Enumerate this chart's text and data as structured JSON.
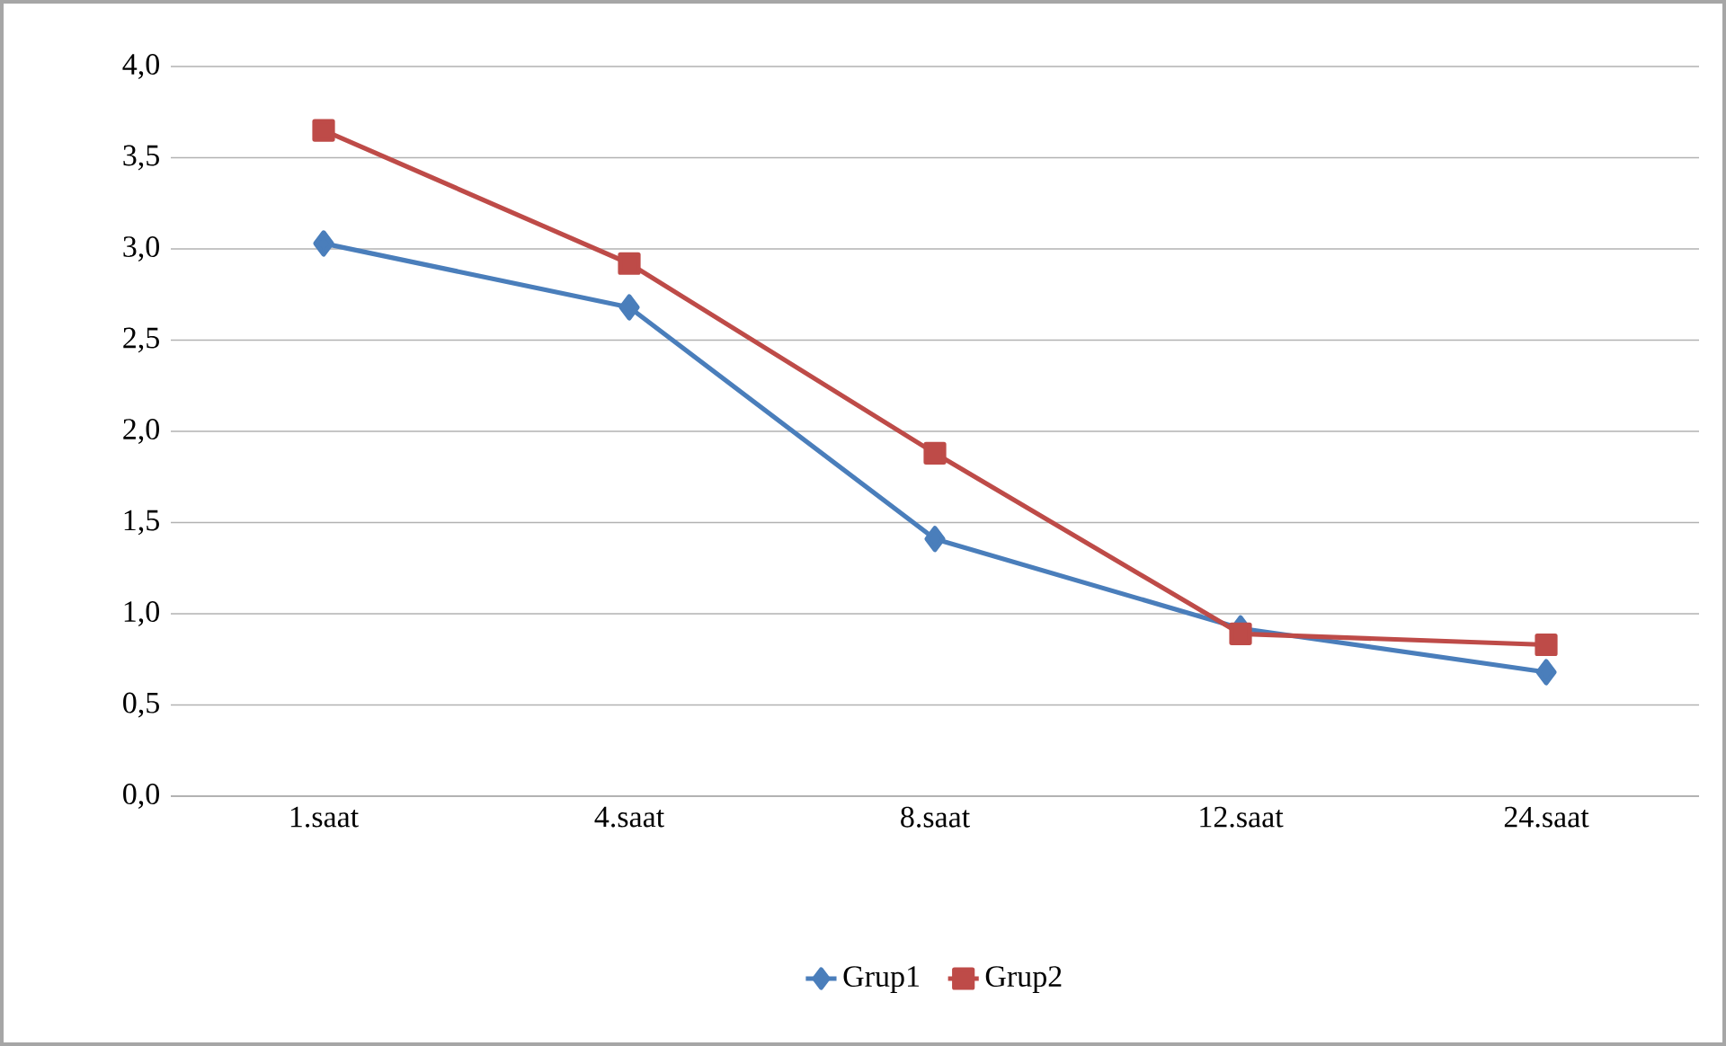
{
  "chart_data": {
    "type": "line",
    "categories": [
      "1.saat",
      "4.saat",
      "8.saat",
      "12.saat",
      "24.saat"
    ],
    "series": [
      {
        "name": "Grup1",
        "color": "#4a7ebb",
        "marker": "diamond",
        "values": [
          3.03,
          2.68,
          1.41,
          0.92,
          0.68
        ]
      },
      {
        "name": "Grup2",
        "color": "#be4b48",
        "marker": "square",
        "values": [
          3.65,
          2.92,
          1.88,
          0.89,
          0.83
        ]
      }
    ],
    "ylim": [
      0,
      4
    ],
    "yticks": [
      {
        "value": 0,
        "label": "0,0"
      },
      {
        "value": 0.5,
        "label": "0,5"
      },
      {
        "value": 1,
        "label": "1,0"
      },
      {
        "value": 1.5,
        "label": "1,5"
      },
      {
        "value": 2,
        "label": "2,0"
      },
      {
        "value": 2.5,
        "label": "2,5"
      },
      {
        "value": 3,
        "label": "3,0"
      },
      {
        "value": 3.5,
        "label": "3,5"
      },
      {
        "value": 4,
        "label": "4,0"
      }
    ],
    "grid": "y",
    "legend": "bottom",
    "line_style": "solid"
  }
}
